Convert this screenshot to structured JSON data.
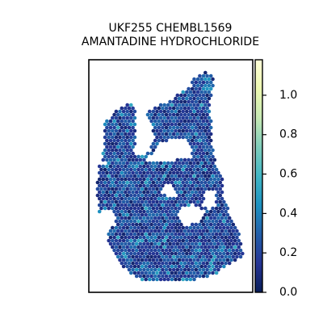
{
  "chart_data": {
    "type": "heatmap",
    "subtype": "hexagonal spatial spot map",
    "title_lines": [
      "UKF255 CHEMBL1569",
      "AMANTADINE HYDROCHLORIDE"
    ],
    "xlabel": "",
    "ylabel": "",
    "axes_ticks_visible": false,
    "grid": false,
    "colormap": "YlGnBu_r",
    "colormap_stops": [
      "#081d58",
      "#253494",
      "#225ea8",
      "#1d91c0",
      "#41b6c4",
      "#7fcdbb",
      "#c7e9b4",
      "#edf8b1",
      "#ffffd9"
    ],
    "colorbar": {
      "position": "right",
      "vmin": 0.0,
      "vmax": 1.18,
      "ticks": [
        0.0,
        0.2,
        0.4,
        0.6,
        0.8,
        1.0
      ],
      "tick_labels": [
        "0.0",
        "0.2",
        "0.4",
        "0.6",
        "0.8",
        "1.0"
      ]
    },
    "value_distribution": {
      "typical_min": 0.05,
      "typical_max": 0.35,
      "sparse_high_max": 0.55,
      "description": "most spots dark navy (about 0.1-0.3) with scattered lighter blue spots up to about 0.5"
    }
  }
}
